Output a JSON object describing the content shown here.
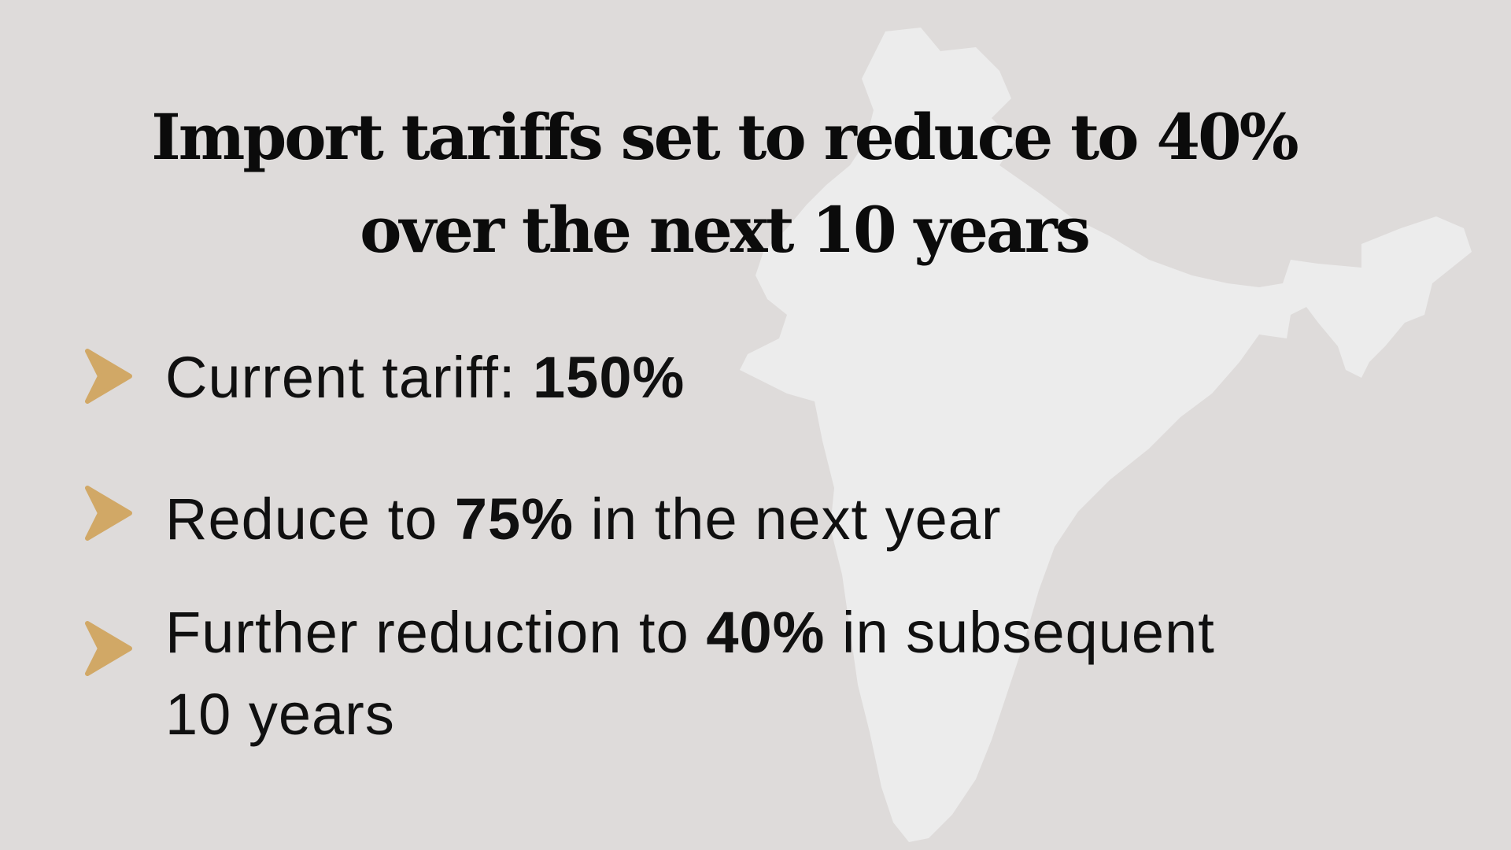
{
  "slide": {
    "title_line1": "Import tariffs set to reduce to 40%",
    "title_line2": "over the next 10 years",
    "bullets": [
      {
        "before": "Current tariff: ",
        "bold": "150%",
        "after": ""
      },
      {
        "before": "Reduce to ",
        "bold": "75%",
        "after": " in the next year"
      },
      {
        "before": "Further reduction to ",
        "bold": "40%",
        "after": " in subsequent",
        "line2": "10 years"
      }
    ]
  },
  "icons": {
    "background": "india-map-silhouette",
    "bullet": "chevron-right-icon"
  },
  "colors": {
    "background": "#dedbda",
    "map": "#ececec",
    "chevron": "#d1a866",
    "text": "#0b0b0b"
  }
}
